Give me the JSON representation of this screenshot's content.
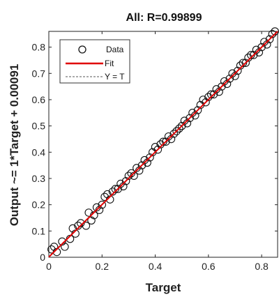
{
  "chart_data": {
    "type": "scatter",
    "title": "All: R=0.99899",
    "xlabel": "Target",
    "ylabel": "Output ~= 1*Target + 0.00091",
    "xlim": [
      0,
      0.86
    ],
    "ylim": [
      0,
      0.86
    ],
    "xticks": [
      "0",
      "0.2",
      "0.4",
      "0.6",
      "0.8"
    ],
    "yticks": [
      "0",
      "0.1",
      "0.2",
      "0.3",
      "0.4",
      "0.5",
      "0.6",
      "0.7",
      "0.8"
    ],
    "grid": false,
    "legend": {
      "placement": "top-left",
      "entries": [
        "Data",
        "Fit",
        "Y = T"
      ]
    },
    "fit": {
      "slope": 1,
      "intercept": 0.00091
    },
    "colors": {
      "data": "#111111",
      "fit": "#e00000",
      "identity": "#555555"
    },
    "data_points": [
      [
        0.01,
        0.03
      ],
      [
        0.02,
        0.04
      ],
      [
        0.03,
        0.02
      ],
      [
        0.05,
        0.06
      ],
      [
        0.06,
        0.04
      ],
      [
        0.08,
        0.07
      ],
      [
        0.09,
        0.11
      ],
      [
        0.1,
        0.09
      ],
      [
        0.12,
        0.13
      ],
      [
        0.14,
        0.12
      ],
      [
        0.15,
        0.17
      ],
      [
        0.17,
        0.16
      ],
      [
        0.18,
        0.19
      ],
      [
        0.2,
        0.2
      ],
      [
        0.21,
        0.23
      ],
      [
        0.23,
        0.22
      ],
      [
        0.24,
        0.25
      ],
      [
        0.26,
        0.26
      ],
      [
        0.27,
        0.28
      ],
      [
        0.29,
        0.29
      ],
      [
        0.3,
        0.31
      ],
      [
        0.32,
        0.31
      ],
      [
        0.33,
        0.34
      ],
      [
        0.35,
        0.35
      ],
      [
        0.36,
        0.37
      ],
      [
        0.38,
        0.38
      ],
      [
        0.39,
        0.4
      ],
      [
        0.41,
        0.41
      ],
      [
        0.42,
        0.43
      ],
      [
        0.44,
        0.44
      ],
      [
        0.45,
        0.46
      ],
      [
        0.47,
        0.47
      ],
      [
        0.48,
        0.48
      ],
      [
        0.5,
        0.5
      ],
      [
        0.51,
        0.52
      ],
      [
        0.53,
        0.53
      ],
      [
        0.54,
        0.55
      ],
      [
        0.56,
        0.56
      ],
      [
        0.57,
        0.58
      ],
      [
        0.59,
        0.59
      ],
      [
        0.6,
        0.61
      ],
      [
        0.62,
        0.62
      ],
      [
        0.63,
        0.64
      ],
      [
        0.65,
        0.65
      ],
      [
        0.66,
        0.67
      ],
      [
        0.68,
        0.68
      ],
      [
        0.69,
        0.7
      ],
      [
        0.71,
        0.71
      ],
      [
        0.72,
        0.73
      ],
      [
        0.74,
        0.74
      ],
      [
        0.75,
        0.76
      ],
      [
        0.77,
        0.77
      ],
      [
        0.78,
        0.79
      ],
      [
        0.8,
        0.8
      ],
      [
        0.81,
        0.82
      ],
      [
        0.83,
        0.83
      ],
      [
        0.84,
        0.85
      ],
      [
        0.85,
        0.86
      ],
      [
        0.16,
        0.14
      ],
      [
        0.22,
        0.24
      ],
      [
        0.28,
        0.27
      ],
      [
        0.34,
        0.33
      ],
      [
        0.4,
        0.42
      ],
      [
        0.46,
        0.45
      ],
      [
        0.52,
        0.51
      ],
      [
        0.58,
        0.6
      ],
      [
        0.64,
        0.63
      ],
      [
        0.7,
        0.69
      ],
      [
        0.76,
        0.77
      ],
      [
        0.82,
        0.81
      ],
      [
        0.11,
        0.12
      ],
      [
        0.19,
        0.18
      ],
      [
        0.25,
        0.26
      ],
      [
        0.31,
        0.32
      ],
      [
        0.37,
        0.36
      ],
      [
        0.43,
        0.44
      ],
      [
        0.49,
        0.49
      ],
      [
        0.55,
        0.54
      ],
      [
        0.61,
        0.62
      ],
      [
        0.67,
        0.66
      ],
      [
        0.73,
        0.74
      ],
      [
        0.79,
        0.78
      ]
    ]
  }
}
